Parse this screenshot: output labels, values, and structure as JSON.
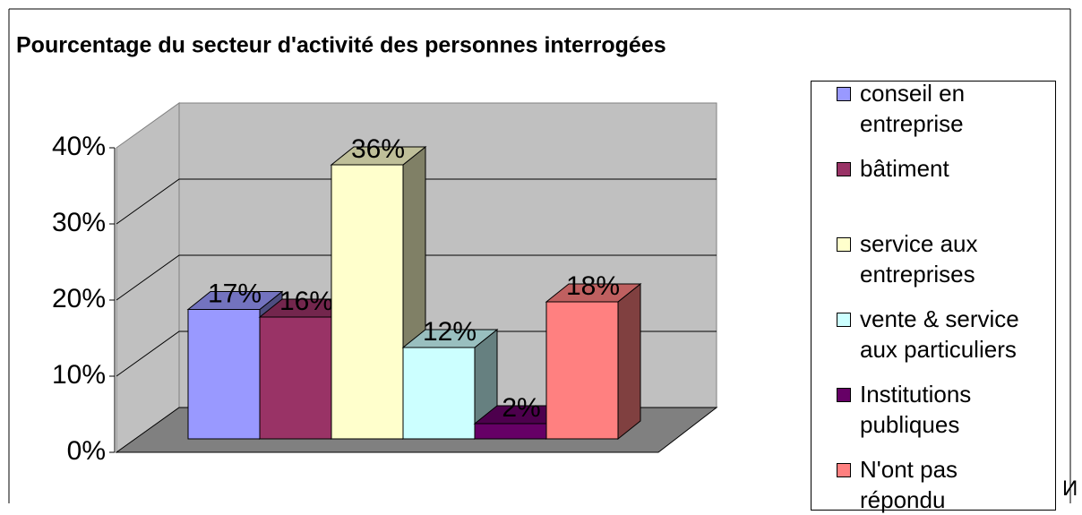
{
  "chart_data": {
    "type": "bar3d",
    "title": "Pourcentage du secteur d'activité des personnes interrogées",
    "categories": [
      "conseil en entreprise",
      "bâtiment",
      "service aux entreprises",
      "vente & service aux particuliers",
      "Institutions publiques",
      "N'ont pas répondu"
    ],
    "values": [
      17,
      16,
      36,
      12,
      2,
      18
    ],
    "value_labels": [
      "17%",
      "16%",
      "36%",
      "12%",
      "2%",
      "18%"
    ],
    "colors": [
      "#9999ff",
      "#993366",
      "#ffffcc",
      "#ccffff",
      "#660066",
      "#ff8080"
    ],
    "ylim": [
      0,
      40
    ],
    "yticks": [
      {
        "value": 0,
        "label": "0%"
      },
      {
        "value": 10,
        "label": "10%"
      },
      {
        "value": 20,
        "label": "20%"
      },
      {
        "value": 30,
        "label": "30%"
      },
      {
        "value": 40,
        "label": "40%"
      }
    ],
    "grid": true,
    "legend": "right"
  },
  "corner_text": "И"
}
